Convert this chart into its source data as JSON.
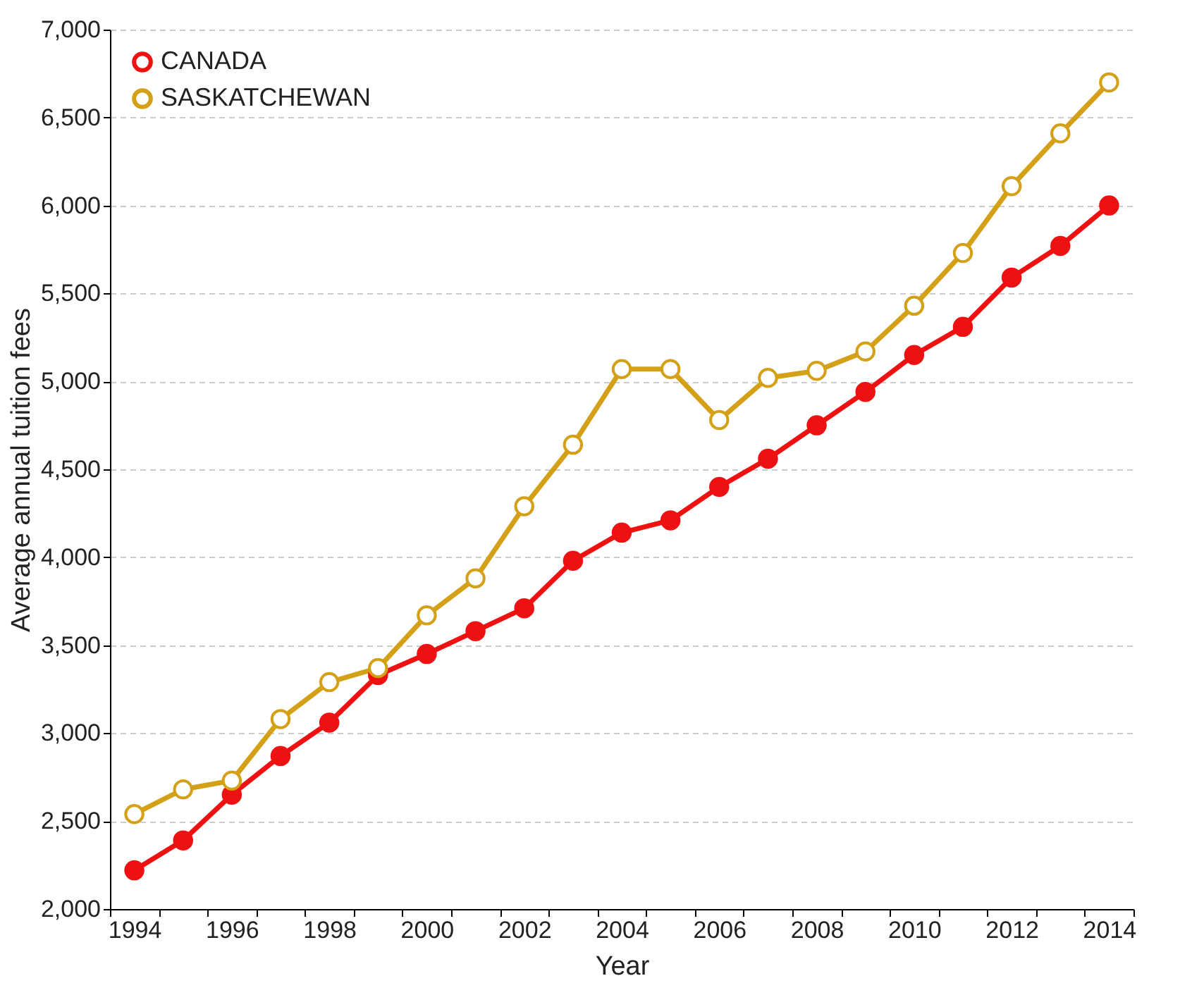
{
  "chart_data": {
    "type": "line",
    "xlabel": "Year",
    "ylabel": "Average annual tuition fees",
    "categories": [
      "1994",
      null,
      "1996",
      null,
      "1998",
      null,
      "2000",
      null,
      "2002",
      null,
      "2004",
      null,
      "2006",
      null,
      "2008",
      null,
      "2010",
      null,
      "2012",
      null,
      "2014"
    ],
    "series": [
      {
        "name": "CANADA",
        "color": "#ee1111",
        "values": [
          2220,
          2390,
          2650,
          2870,
          3060,
          3330,
          3450,
          3580,
          3710,
          3980,
          4140,
          4210,
          4400,
          4560,
          4750,
          4940,
          5150,
          5310,
          5590,
          5770,
          6000
        ]
      },
      {
        "name": "SASKATCHEWAN",
        "color": "#d4a017",
        "values": [
          2540,
          2680,
          2730,
          3080,
          3290,
          3370,
          3670,
          3880,
          4290,
          4640,
          5070,
          5070,
          4780,
          5020,
          5060,
          5170,
          5430,
          5730,
          6110,
          6410,
          6700
        ]
      }
    ],
    "ylim": [
      2000,
      7000
    ],
    "yticks": [
      {
        "value": 2000,
        "label": "2,000"
      },
      {
        "value": 2500,
        "label": "2,500"
      },
      {
        "value": 3000,
        "label": "3,000"
      },
      {
        "value": 3500,
        "label": "3,500"
      },
      {
        "value": 4000,
        "label": "4,000"
      },
      {
        "value": 4500,
        "label": "4,500"
      },
      {
        "value": 5000,
        "label": "5,000"
      },
      {
        "value": 5500,
        "label": "5,500"
      },
      {
        "value": 6000,
        "label": "6,000"
      },
      {
        "value": 6500,
        "label": "6,500"
      },
      {
        "value": 7000,
        "label": "7,000"
      }
    ],
    "grid": "y",
    "legend": "top left",
    "marker": "circle",
    "line_style": "solid"
  }
}
